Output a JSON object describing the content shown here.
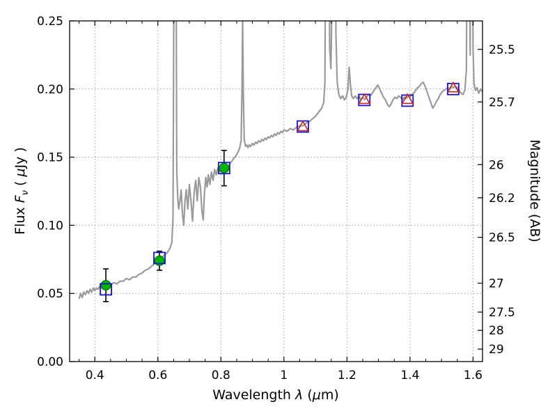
{
  "labels": {
    "x": {
      "word": "Wavelength",
      "lambda": "λ",
      "units_open": "(",
      "mu": "μ",
      "units_close": "m)"
    },
    "y_left": {
      "word": "Flux",
      "f_symbol": "F",
      "nu": "ν",
      "units_open": "( ",
      "mu": "μ",
      "units_close": "Jy )"
    },
    "y_right": "Magnitude (AB)"
  },
  "chart_data": {
    "type": "line",
    "title": "",
    "xlabel": "Wavelength λ (μm)",
    "ylabel_left": "Flux Fν ( μJy )",
    "ylabel_right": "Magnitude (AB)",
    "xlim": [
      0.32,
      1.63
    ],
    "ylim": [
      0.0,
      0.25
    ],
    "grid": {
      "on": true,
      "style": "dotted"
    },
    "legend": "none",
    "x_ticks": [
      0.4,
      0.6,
      0.8,
      1.0,
      1.2,
      1.4,
      1.6
    ],
    "x_tick_labels": [
      "0.4",
      "0.6",
      "0.8",
      "1",
      "1.2",
      "1.4",
      "1.6"
    ],
    "y_ticks_left": [
      0.0,
      0.05,
      0.1,
      0.15,
      0.2,
      0.25
    ],
    "y_tick_labels_left": [
      "0.00",
      "0.05",
      "0.10",
      "0.15",
      "0.20",
      "0.25"
    ],
    "y_ticks_right_mag": [
      25.5,
      25.7,
      26,
      26.2,
      26.5,
      27,
      27.5,
      28,
      29
    ],
    "y_tick_labels_right": [
      "25.5",
      "25.7",
      "26",
      "26.2",
      "26.5",
      "27",
      "27.5",
      "28",
      "29"
    ],
    "ab_zeropoint_mujy": 23.9,
    "colors": {
      "spectrum": "#9a9a9a",
      "observed": "#00b300",
      "observed_edge": "#046404",
      "errorbar": "#000000",
      "band_square": "#1414cc",
      "model_triangle": "#cc2222"
    },
    "series": [
      {
        "name": "model-spectrum",
        "type": "line",
        "points": [
          [
            0.35,
            0.046
          ],
          [
            0.355,
            0.05
          ],
          [
            0.36,
            0.047
          ],
          [
            0.365,
            0.051
          ],
          [
            0.37,
            0.049
          ],
          [
            0.375,
            0.052
          ],
          [
            0.38,
            0.05
          ],
          [
            0.385,
            0.053
          ],
          [
            0.39,
            0.051
          ],
          [
            0.395,
            0.054
          ],
          [
            0.4,
            0.052
          ],
          [
            0.405,
            0.054
          ],
          [
            0.41,
            0.053
          ],
          [
            0.415,
            0.055
          ],
          [
            0.42,
            0.054
          ],
          [
            0.425,
            0.056
          ],
          [
            0.43,
            0.055
          ],
          [
            0.435,
            0.056
          ],
          [
            0.44,
            0.057
          ],
          [
            0.45,
            0.056
          ],
          [
            0.46,
            0.058
          ],
          [
            0.47,
            0.057
          ],
          [
            0.48,
            0.059
          ],
          [
            0.49,
            0.059
          ],
          [
            0.5,
            0.061
          ],
          [
            0.51,
            0.06
          ],
          [
            0.52,
            0.062
          ],
          [
            0.53,
            0.062
          ],
          [
            0.54,
            0.064
          ],
          [
            0.55,
            0.065
          ],
          [
            0.56,
            0.067
          ],
          [
            0.57,
            0.068
          ],
          [
            0.58,
            0.07
          ],
          [
            0.59,
            0.072
          ],
          [
            0.6,
            0.074
          ],
          [
            0.61,
            0.076
          ],
          [
            0.62,
            0.078
          ],
          [
            0.63,
            0.08
          ],
          [
            0.638,
            0.083
          ],
          [
            0.644,
            0.087
          ],
          [
            0.648,
            0.105
          ],
          [
            0.651,
            0.28
          ],
          [
            0.654,
            0.62
          ],
          [
            0.657,
            0.35
          ],
          [
            0.66,
            0.14
          ],
          [
            0.663,
            0.12
          ],
          [
            0.666,
            0.112
          ],
          [
            0.67,
            0.118
          ],
          [
            0.674,
            0.126
          ],
          [
            0.678,
            0.108
          ],
          [
            0.682,
            0.1
          ],
          [
            0.686,
            0.118
          ],
          [
            0.69,
            0.126
          ],
          [
            0.695,
            0.112
          ],
          [
            0.7,
            0.13
          ],
          [
            0.705,
            0.118
          ],
          [
            0.71,
            0.103
          ],
          [
            0.715,
            0.124
          ],
          [
            0.72,
            0.133
          ],
          [
            0.725,
            0.118
          ],
          [
            0.73,
            0.135
          ],
          [
            0.735,
            0.128
          ],
          [
            0.74,
            0.11
          ],
          [
            0.744,
            0.104
          ],
          [
            0.748,
            0.124
          ],
          [
            0.752,
            0.135
          ],
          [
            0.756,
            0.128
          ],
          [
            0.76,
            0.137
          ],
          [
            0.765,
            0.13
          ],
          [
            0.77,
            0.139
          ],
          [
            0.775,
            0.133
          ],
          [
            0.78,
            0.141
          ],
          [
            0.785,
            0.137
          ],
          [
            0.79,
            0.142
          ],
          [
            0.795,
            0.139
          ],
          [
            0.8,
            0.141
          ],
          [
            0.805,
            0.14
          ],
          [
            0.81,
            0.142
          ],
          [
            0.815,
            0.143
          ],
          [
            0.82,
            0.144
          ],
          [
            0.825,
            0.143
          ],
          [
            0.83,
            0.146
          ],
          [
            0.835,
            0.147
          ],
          [
            0.84,
            0.149
          ],
          [
            0.845,
            0.15
          ],
          [
            0.85,
            0.152
          ],
          [
            0.855,
            0.154
          ],
          [
            0.86,
            0.157
          ],
          [
            0.864,
            0.162
          ],
          [
            0.867,
            0.2
          ],
          [
            0.869,
            0.252
          ],
          [
            0.871,
            0.2
          ],
          [
            0.874,
            0.163
          ],
          [
            0.878,
            0.158
          ],
          [
            0.882,
            0.159
          ],
          [
            0.886,
            0.157
          ],
          [
            0.89,
            0.159
          ],
          [
            0.895,
            0.158
          ],
          [
            0.9,
            0.16
          ],
          [
            0.905,
            0.159
          ],
          [
            0.91,
            0.161
          ],
          [
            0.915,
            0.16
          ],
          [
            0.92,
            0.162
          ],
          [
            0.925,
            0.161
          ],
          [
            0.93,
            0.163
          ],
          [
            0.935,
            0.162
          ],
          [
            0.94,
            0.164
          ],
          [
            0.945,
            0.163
          ],
          [
            0.95,
            0.165
          ],
          [
            0.955,
            0.164
          ],
          [
            0.96,
            0.166
          ],
          [
            0.965,
            0.165
          ],
          [
            0.97,
            0.167
          ],
          [
            0.975,
            0.166
          ],
          [
            0.98,
            0.168
          ],
          [
            0.985,
            0.167
          ],
          [
            0.99,
            0.169
          ],
          [
            0.995,
            0.168
          ],
          [
            1.0,
            0.17
          ],
          [
            1.01,
            0.169
          ],
          [
            1.02,
            0.171
          ],
          [
            1.03,
            0.17
          ],
          [
            1.04,
            0.172
          ],
          [
            1.05,
            0.173
          ],
          [
            1.06,
            0.173
          ],
          [
            1.07,
            0.175
          ],
          [
            1.08,
            0.176
          ],
          [
            1.09,
            0.178
          ],
          [
            1.1,
            0.18
          ],
          [
            1.11,
            0.183
          ],
          [
            1.12,
            0.186
          ],
          [
            1.126,
            0.19
          ],
          [
            1.13,
            0.205
          ],
          [
            1.133,
            0.38
          ],
          [
            1.137,
            0.55
          ],
          [
            1.141,
            0.42
          ],
          [
            1.145,
            0.23
          ],
          [
            1.149,
            0.215
          ],
          [
            1.152,
            0.26
          ],
          [
            1.156,
            0.58
          ],
          [
            1.161,
            0.5
          ],
          [
            1.165,
            0.24
          ],
          [
            1.169,
            0.205
          ],
          [
            1.174,
            0.196
          ],
          [
            1.18,
            0.193
          ],
          [
            1.186,
            0.195
          ],
          [
            1.192,
            0.192
          ],
          [
            1.198,
            0.194
          ],
          [
            1.203,
            0.2
          ],
          [
            1.207,
            0.216
          ],
          [
            1.211,
            0.203
          ],
          [
            1.215,
            0.195
          ],
          [
            1.22,
            0.193
          ],
          [
            1.226,
            0.195
          ],
          [
            1.232,
            0.193
          ],
          [
            1.238,
            0.195
          ],
          [
            1.244,
            0.192
          ],
          [
            1.25,
            0.194
          ],
          [
            1.256,
            0.192
          ],
          [
            1.262,
            0.194
          ],
          [
            1.268,
            0.196
          ],
          [
            1.274,
            0.195
          ],
          [
            1.28,
            0.197
          ],
          [
            1.286,
            0.199
          ],
          [
            1.292,
            0.201
          ],
          [
            1.298,
            0.203
          ],
          [
            1.304,
            0.2
          ],
          [
            1.31,
            0.197
          ],
          [
            1.316,
            0.194
          ],
          [
            1.322,
            0.192
          ],
          [
            1.328,
            0.189
          ],
          [
            1.334,
            0.187
          ],
          [
            1.34,
            0.189
          ],
          [
            1.346,
            0.192
          ],
          [
            1.352,
            0.194
          ],
          [
            1.358,
            0.193
          ],
          [
            1.364,
            0.195
          ],
          [
            1.37,
            0.194
          ],
          [
            1.376,
            0.192
          ],
          [
            1.382,
            0.194
          ],
          [
            1.388,
            0.193
          ],
          [
            1.394,
            0.195
          ],
          [
            1.4,
            0.194
          ],
          [
            1.406,
            0.196
          ],
          [
            1.412,
            0.197
          ],
          [
            1.418,
            0.199
          ],
          [
            1.424,
            0.201
          ],
          [
            1.43,
            0.202
          ],
          [
            1.436,
            0.204
          ],
          [
            1.442,
            0.205
          ],
          [
            1.448,
            0.202
          ],
          [
            1.454,
            0.198
          ],
          [
            1.46,
            0.194
          ],
          [
            1.466,
            0.19
          ],
          [
            1.472,
            0.186
          ],
          [
            1.478,
            0.188
          ],
          [
            1.484,
            0.191
          ],
          [
            1.49,
            0.193
          ],
          [
            1.496,
            0.196
          ],
          [
            1.502,
            0.198
          ],
          [
            1.508,
            0.199
          ],
          [
            1.514,
            0.2
          ],
          [
            1.52,
            0.201
          ],
          [
            1.526,
            0.2
          ],
          [
            1.532,
            0.202
          ],
          [
            1.538,
            0.201
          ],
          [
            1.544,
            0.202
          ],
          [
            1.55,
            0.201
          ],
          [
            1.556,
            0.199
          ],
          [
            1.562,
            0.197
          ],
          [
            1.568,
            0.196
          ],
          [
            1.574,
            0.199
          ],
          [
            1.579,
            0.215
          ],
          [
            1.583,
            0.45
          ],
          [
            1.586,
            0.62
          ],
          [
            1.589,
            0.3
          ],
          [
            1.591,
            0.225
          ],
          [
            1.594,
            0.55
          ],
          [
            1.597,
            0.4
          ],
          [
            1.6,
            0.23
          ],
          [
            1.603,
            0.204
          ],
          [
            1.608,
            0.199
          ],
          [
            1.613,
            0.201
          ],
          [
            1.618,
            0.197
          ],
          [
            1.624,
            0.2
          ],
          [
            1.63,
            0.198
          ]
        ]
      },
      {
        "name": "observed-photometry",
        "type": "scatter",
        "marker": "circle",
        "points": [
          {
            "x": 0.435,
            "y": 0.056,
            "err": 0.012
          },
          {
            "x": 0.605,
            "y": 0.074,
            "err": 0.007
          },
          {
            "x": 0.81,
            "y": 0.142,
            "err": 0.013
          }
        ]
      },
      {
        "name": "band-averaged-photometry",
        "type": "scatter",
        "marker": "open-square",
        "points": [
          [
            0.435,
            0.053
          ],
          [
            0.605,
            0.076
          ],
          [
            0.81,
            0.142
          ],
          [
            1.06,
            0.1725
          ],
          [
            1.255,
            0.192
          ],
          [
            1.392,
            0.1915
          ],
          [
            1.537,
            0.2
          ]
        ]
      },
      {
        "name": "model-photometry",
        "type": "scatter",
        "marker": "open-triangle",
        "points": [
          [
            1.06,
            0.1725
          ],
          [
            1.255,
            0.1925
          ],
          [
            1.392,
            0.1925
          ],
          [
            1.537,
            0.201
          ]
        ]
      }
    ]
  }
}
